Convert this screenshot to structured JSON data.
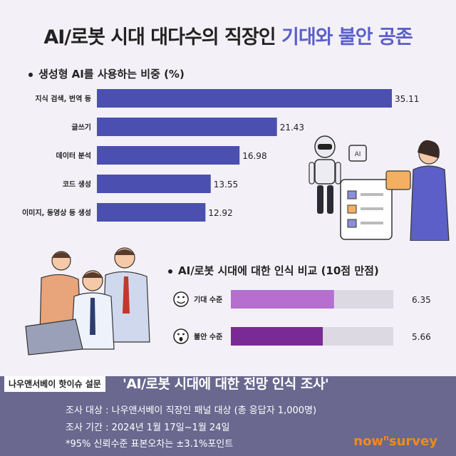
{
  "title": {
    "main": "AI/로봇 시대 대다수의 직장인 ",
    "accent": "기대와 불안 공존"
  },
  "chart_data": [
    {
      "type": "bar",
      "title": "생성형 AI를 사용하는 비중 (%)",
      "categories": [
        "지식 검색, 번역 등",
        "글쓰기",
        "데이터 분석",
        "코드 생성",
        "이미지, 동영상 등 생성"
      ],
      "values": [
        35.11,
        21.43,
        16.98,
        13.55,
        12.92
      ],
      "color": "#4a4fb0"
    },
    {
      "type": "bar",
      "title": "AI/로봇 시대에 대한 인식 비교 (10점 만점)",
      "categories": [
        "기대 수준",
        "불안 수준"
      ],
      "values": [
        6.35,
        5.66
      ],
      "xlim": [
        0,
        10
      ],
      "colors": [
        "#b66ed0",
        "#7a2a95"
      ],
      "track_color": "#dcd9e3",
      "icons": [
        "smile-icon",
        "surprised-icon"
      ]
    }
  ],
  "footer": {
    "tag": "나우앤서베이 핫이슈 설문",
    "title": "'AI/로봇 시대에 대한 전망 인식 조사'",
    "line1": "조사 대상 : 나우앤서베이 직장인 패널 대상 (총 응답자 1,000명)",
    "line2": "조사 기간 : 2024년 1월 17일~1월 24일",
    "line3": "*95% 신뢰수준 표본오차는 ±3.1%포인트",
    "logo_main": "now",
    "logo_sup": "n",
    "logo_end": "survey"
  }
}
